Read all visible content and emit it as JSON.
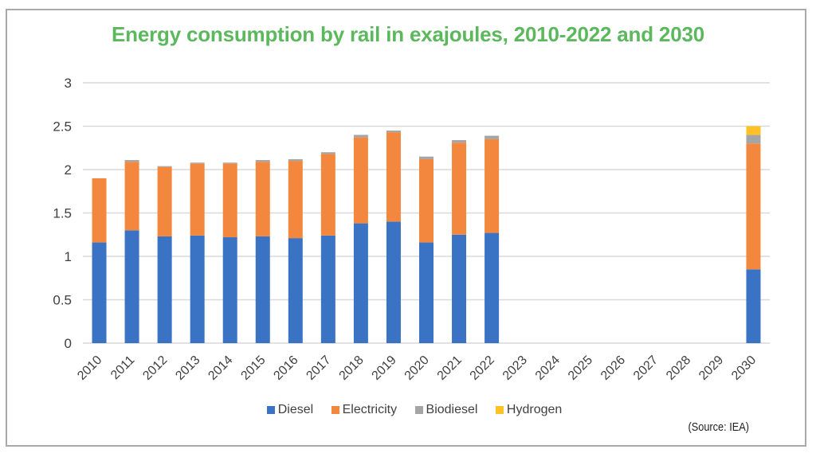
{
  "chart_data": {
    "type": "bar",
    "stacked": true,
    "title": "Energy consumption by rail in exajoules, 2010-2022 and 2030",
    "xlabel": "",
    "ylabel": "",
    "ylim": [
      0,
      3
    ],
    "yticks": [
      "0",
      "0.5",
      "1",
      "1.5",
      "2",
      "2.5",
      "3"
    ],
    "ytick_values": [
      0,
      0.5,
      1,
      1.5,
      2,
      2.5,
      3
    ],
    "grid": true,
    "legend_position": "bottom",
    "categories": [
      "2010",
      "2011",
      "2012",
      "2013",
      "2014",
      "2015",
      "2016",
      "2017",
      "2018",
      "2019",
      "2020",
      "2021",
      "2022",
      "2023",
      "2024",
      "2025",
      "2026",
      "2027",
      "2028",
      "2029",
      "2030"
    ],
    "series": [
      {
        "name": "Diesel",
        "color": "#3a73c4",
        "values": [
          1.16,
          1.3,
          1.23,
          1.24,
          1.22,
          1.23,
          1.21,
          1.24,
          1.38,
          1.4,
          1.16,
          1.25,
          1.27,
          null,
          null,
          null,
          null,
          null,
          null,
          null,
          0.85
        ]
      },
      {
        "name": "Electricity",
        "color": "#f4873e",
        "values": [
          0.74,
          0.79,
          0.8,
          0.83,
          0.85,
          0.86,
          0.89,
          0.94,
          0.99,
          1.03,
          0.96,
          1.06,
          1.08,
          null,
          null,
          null,
          null,
          null,
          null,
          null,
          1.45
        ]
      },
      {
        "name": "Biodiesel",
        "color": "#a5a5a5",
        "values": [
          0.0,
          0.02,
          0.01,
          0.01,
          0.01,
          0.02,
          0.02,
          0.02,
          0.03,
          0.02,
          0.03,
          0.03,
          0.04,
          null,
          null,
          null,
          null,
          null,
          null,
          null,
          0.1
        ]
      },
      {
        "name": "Hydrogen",
        "color": "#ffc125",
        "values": [
          0,
          0,
          0,
          0,
          0,
          0,
          0,
          0,
          0,
          0,
          0,
          0,
          0,
          null,
          null,
          null,
          null,
          null,
          null,
          null,
          0.1
        ]
      }
    ],
    "source": "(Source: IEA)"
  }
}
